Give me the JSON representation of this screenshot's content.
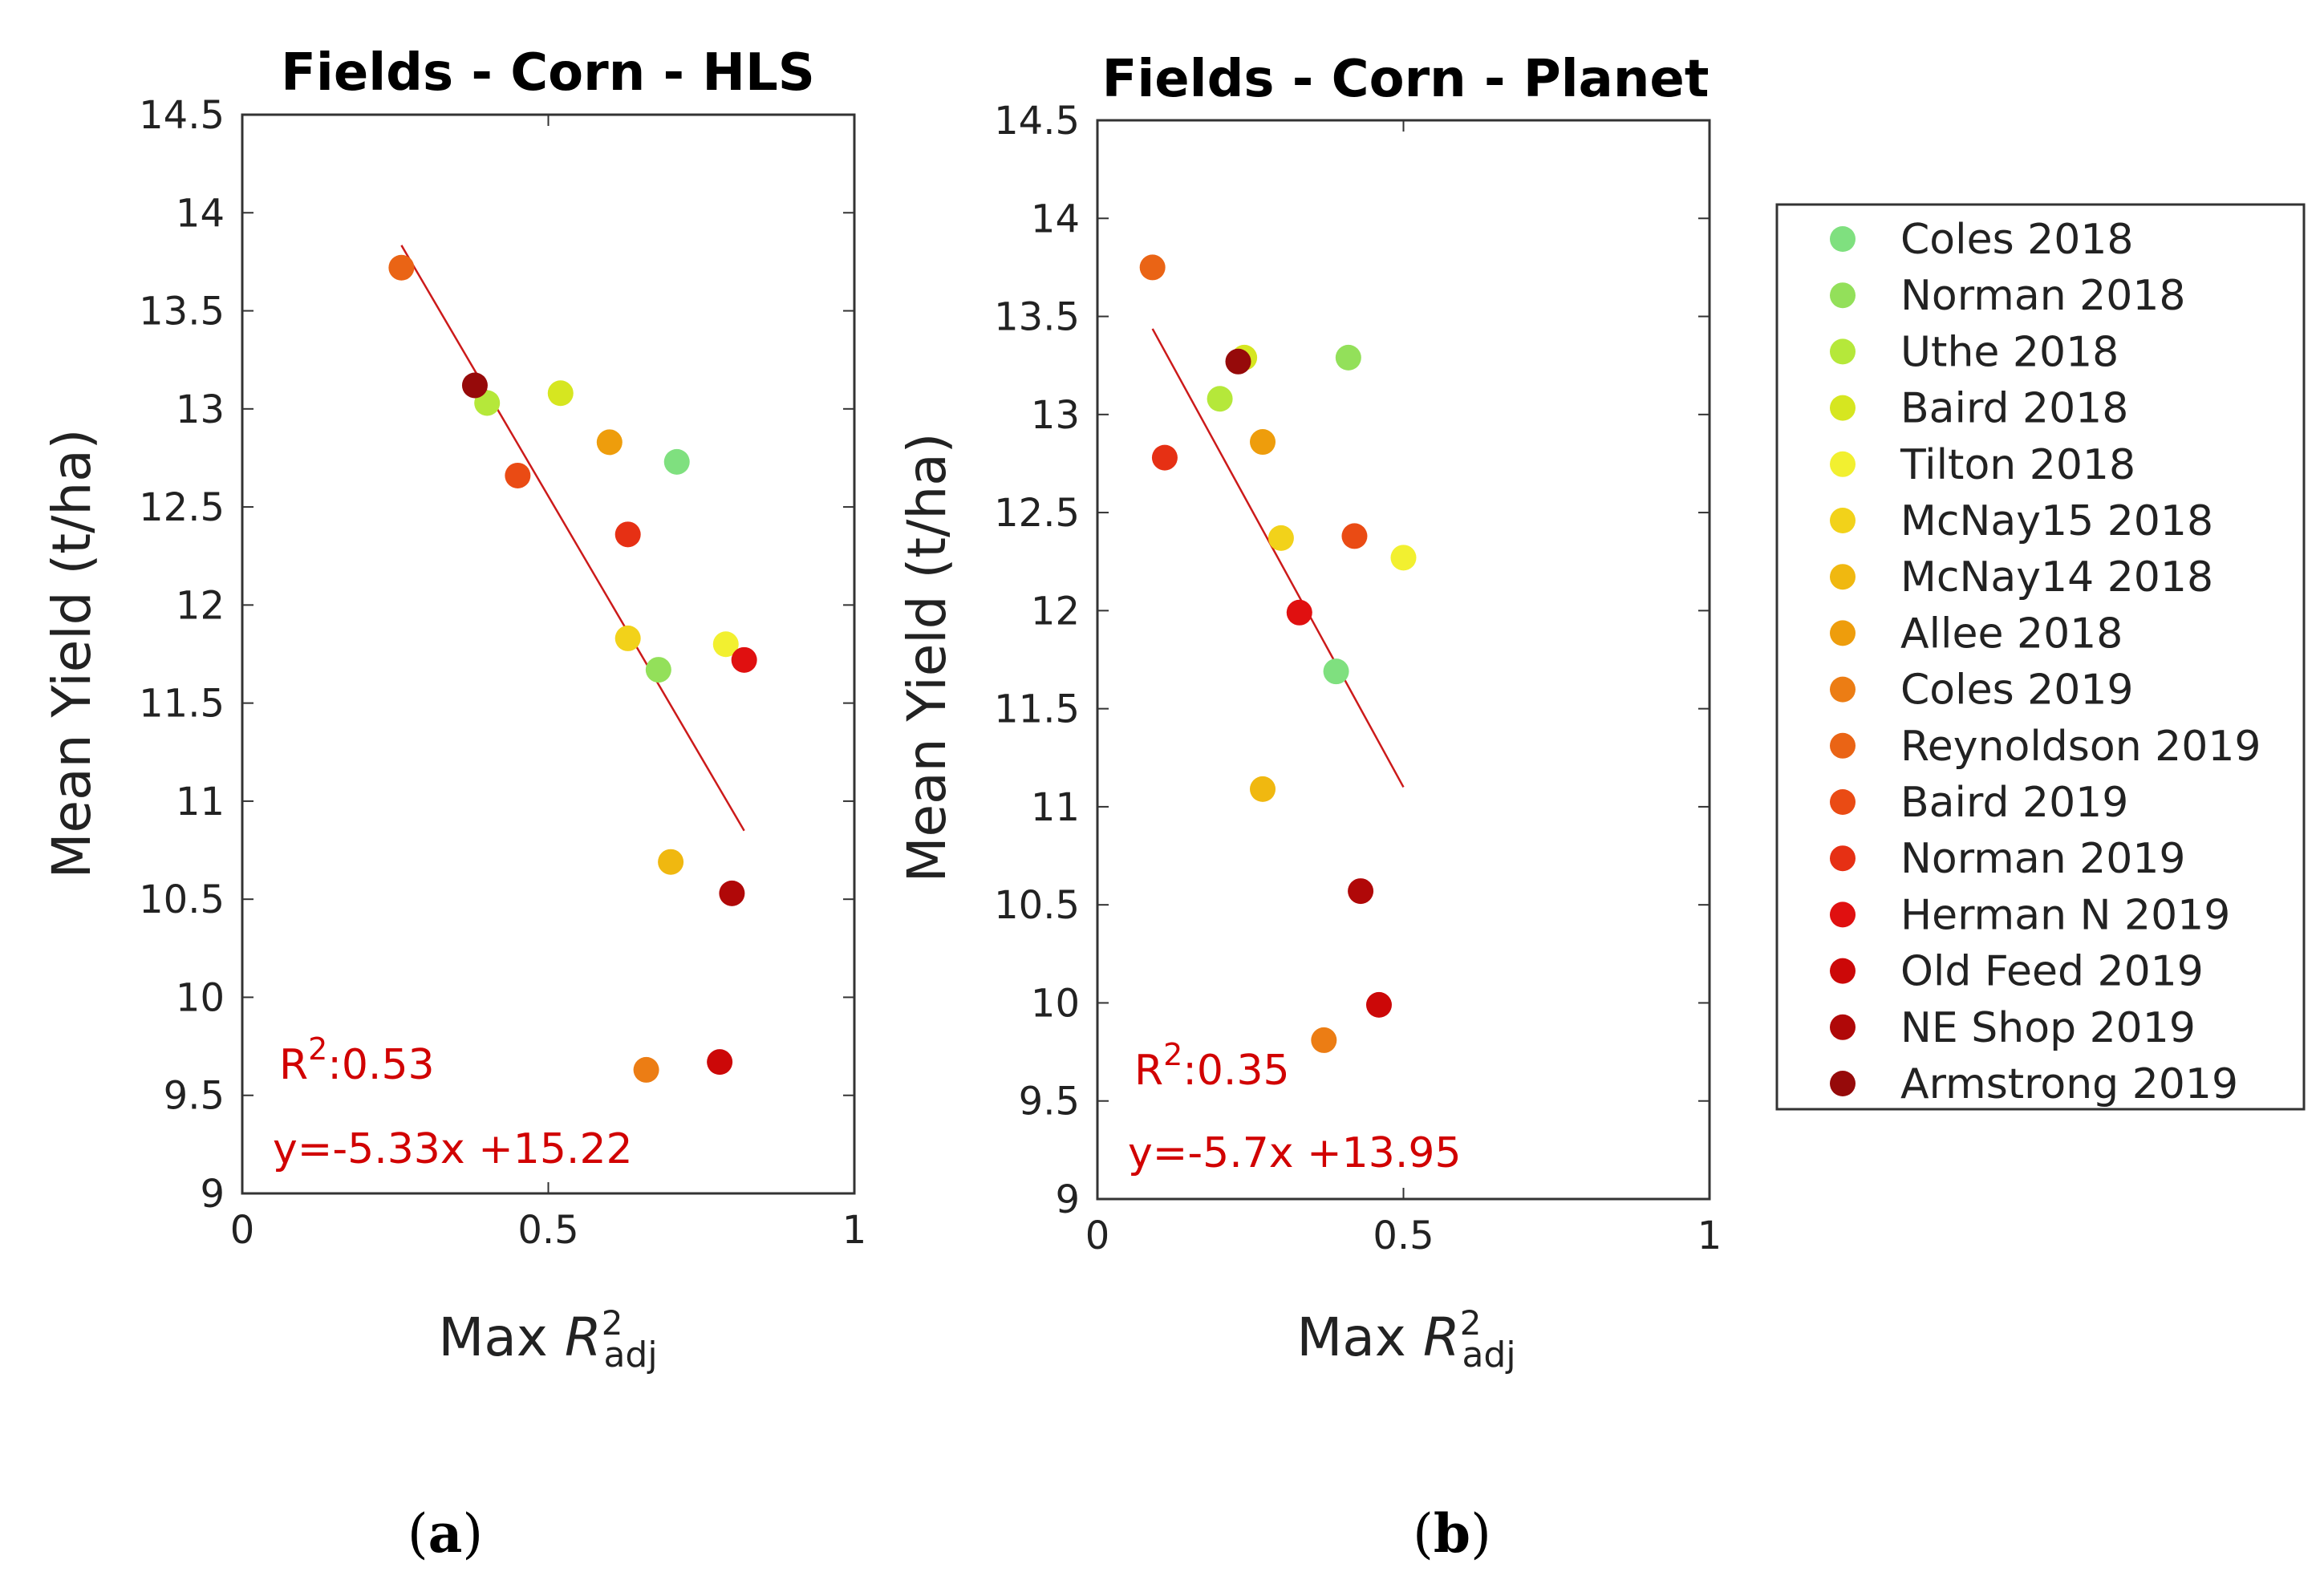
{
  "chart_data": [
    {
      "type": "scatter",
      "title": "Fields - Corn - HLS",
      "xlabel": "Max R2adj",
      "ylabel": "Mean Yield (t/ha)",
      "xlim": [
        0,
        1
      ],
      "ylim": [
        9,
        14.5
      ],
      "xticks": [
        "0",
        "0.5",
        "1"
      ],
      "yticks": [
        "9",
        "9.5",
        "10",
        "10.5",
        "11",
        "11.5",
        "12",
        "12.5",
        "13",
        "13.5",
        "14",
        "14.5"
      ],
      "points": [
        {
          "series": "Coles 2018",
          "x": 0.71,
          "y": 12.73
        },
        {
          "series": "Norman 2018",
          "x": 0.68,
          "y": 11.67
        },
        {
          "series": "Uthe 2018",
          "x": 0.4,
          "y": 13.03
        },
        {
          "series": "Baird 2018",
          "x": 0.52,
          "y": 13.08
        },
        {
          "series": "Tilton 2018",
          "x": 0.79,
          "y": 11.8
        },
        {
          "series": "McNay15 2018",
          "x": 0.63,
          "y": 11.83
        },
        {
          "series": "McNay14 2018",
          "x": 0.7,
          "y": 10.69
        },
        {
          "series": "Allee 2018",
          "x": 0.6,
          "y": 12.83
        },
        {
          "series": "Coles 2019",
          "x": 0.66,
          "y": 9.63
        },
        {
          "series": "Reynoldson 2019",
          "x": 0.26,
          "y": 13.72
        },
        {
          "series": "Baird 2019",
          "x": 0.45,
          "y": 12.66
        },
        {
          "series": "Norman 2019",
          "x": 0.63,
          "y": 12.36
        },
        {
          "series": "Herman N 2019",
          "x": 0.82,
          "y": 11.72
        },
        {
          "series": "Old Feed 2019",
          "x": 0.78,
          "y": 9.67
        },
        {
          "series": "NE Shop 2019",
          "x": 0.8,
          "y": 10.53
        },
        {
          "series": "Armstrong 2019",
          "x": 0.38,
          "y": 13.12
        }
      ],
      "fit_line": {
        "slope": -5.33,
        "intercept": 15.22,
        "x_start": 0.26,
        "x_end": 0.82
      },
      "annotations": {
        "r2_label": "R",
        "r2_sup": "2",
        "r2_value": ":0.53",
        "equation": "y=-5.33x +15.22"
      }
    },
    {
      "type": "scatter",
      "title": "Fields - Corn - Planet",
      "xlabel": "Max R2adj",
      "ylabel": "Mean Yield (t/ha)",
      "xlim": [
        0,
        1
      ],
      "ylim": [
        9,
        14.5
      ],
      "xticks": [
        "0",
        "0.5",
        "1"
      ],
      "yticks": [
        "9",
        "9.5",
        "10",
        "10.5",
        "11",
        "11.5",
        "12",
        "12.5",
        "13",
        "13.5",
        "14",
        "14.5"
      ],
      "points": [
        {
          "series": "Coles 2018",
          "x": 0.39,
          "y": 11.69
        },
        {
          "series": "Norman 2018",
          "x": 0.41,
          "y": 13.29
        },
        {
          "series": "Uthe 2018",
          "x": 0.2,
          "y": 13.08
        },
        {
          "series": "Baird 2018",
          "x": 0.24,
          "y": 13.29
        },
        {
          "series": "Tilton 2018",
          "x": 0.5,
          "y": 12.27
        },
        {
          "series": "McNay15 2018",
          "x": 0.3,
          "y": 12.37
        },
        {
          "series": "McNay14 2018",
          "x": 0.27,
          "y": 11.09
        },
        {
          "series": "Allee 2018",
          "x": 0.27,
          "y": 12.86
        },
        {
          "series": "Coles 2019",
          "x": 0.37,
          "y": 9.81
        },
        {
          "series": "Reynoldson 2019",
          "x": 0.09,
          "y": 13.75
        },
        {
          "series": "Baird 2019",
          "x": 0.42,
          "y": 12.38
        },
        {
          "series": "Norman 2019",
          "x": 0.11,
          "y": 12.78
        },
        {
          "series": "Herman N 2019",
          "x": 0.33,
          "y": 11.99
        },
        {
          "series": "Old Feed 2019",
          "x": 0.46,
          "y": 9.99
        },
        {
          "series": "NE Shop 2019",
          "x": 0.43,
          "y": 10.57
        },
        {
          "series": "Armstrong 2019",
          "x": 0.23,
          "y": 13.27
        }
      ],
      "fit_line": {
        "slope": -5.7,
        "intercept": 13.95,
        "x_start": 0.09,
        "x_end": 0.5
      },
      "annotations": {
        "r2_label": "R",
        "r2_sup": "2",
        "r2_value": ":0.35",
        "equation": "y=-5.7x +13.95"
      }
    }
  ],
  "axis_label_parts": {
    "y": "Mean Yield (t/ha)",
    "x_prefix": "Max ",
    "x_var": "R",
    "x_sup": "2",
    "x_sub": "adj"
  },
  "legend": [
    {
      "label": "Coles 2018",
      "color": "#7fe07f"
    },
    {
      "label": "Norman 2018",
      "color": "#93e05a"
    },
    {
      "label": "Uthe 2018",
      "color": "#b5e83a"
    },
    {
      "label": "Baird 2018",
      "color": "#d6e620"
    },
    {
      "label": "Tilton 2018",
      "color": "#f2f030"
    },
    {
      "label": "McNay15 2018",
      "color": "#f2d21a"
    },
    {
      "label": "McNay14 2018",
      "color": "#f0b810"
    },
    {
      "label": "Allee 2018",
      "color": "#ee9d0c"
    },
    {
      "label": "Coles 2019",
      "color": "#ec7d14"
    },
    {
      "label": "Reynoldson 2019",
      "color": "#ea6415"
    },
    {
      "label": "Baird 2019",
      "color": "#ea4b14"
    },
    {
      "label": "Norman 2019",
      "color": "#e63014"
    },
    {
      "label": "Herman N 2019",
      "color": "#e01010"
    },
    {
      "label": "Old Feed 2019",
      "color": "#cc0808"
    },
    {
      "label": "NE Shop 2019",
      "color": "#b00808"
    },
    {
      "label": "Armstrong 2019",
      "color": "#960a0a"
    }
  ],
  "fit_color": "#cc1a1a",
  "panels": [
    {
      "open": "(",
      "letter": "a",
      "close": ")"
    },
    {
      "open": "(",
      "letter": "b",
      "close": ")"
    }
  ]
}
